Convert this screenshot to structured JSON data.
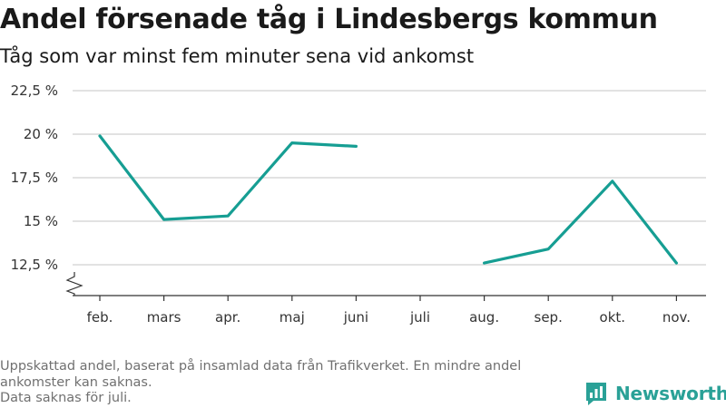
{
  "title": "Andel försenade tåg i Lindesbergs kommun",
  "subtitle": "Tåg som var minst fem minuter sena vid ankomst",
  "footer": {
    "line1": "Uppskattad andel, baserat på insamlad data från Trafikverket. En mindre andel",
    "line2": "ankomster kan saknas.",
    "line3": "Data saknas för juli."
  },
  "brand": {
    "name": "Newsworthy",
    "icon": "newsworthy-logo-icon"
  },
  "colors": {
    "line": "#169e93",
    "grid": "#d9d9d9",
    "axis": "#333333",
    "brand": "#2aa197"
  },
  "chart_data": {
    "type": "line",
    "categories": [
      "feb.",
      "mars",
      "apr.",
      "maj",
      "juni",
      "juli",
      "aug.",
      "sep.",
      "okt.",
      "nov."
    ],
    "values": [
      19.9,
      15.1,
      15.3,
      19.5,
      19.3,
      null,
      12.6,
      13.4,
      17.3,
      12.6
    ],
    "y_ticks": [
      12.5,
      15,
      17.5,
      20,
      22.5
    ],
    "y_tick_labels": [
      "12,5 %",
      "15 %",
      "17,5 %",
      "20 %",
      "22,5 %"
    ],
    "ylim": [
      12.5,
      22.5
    ],
    "y_axis_break": true,
    "grid": true
  }
}
